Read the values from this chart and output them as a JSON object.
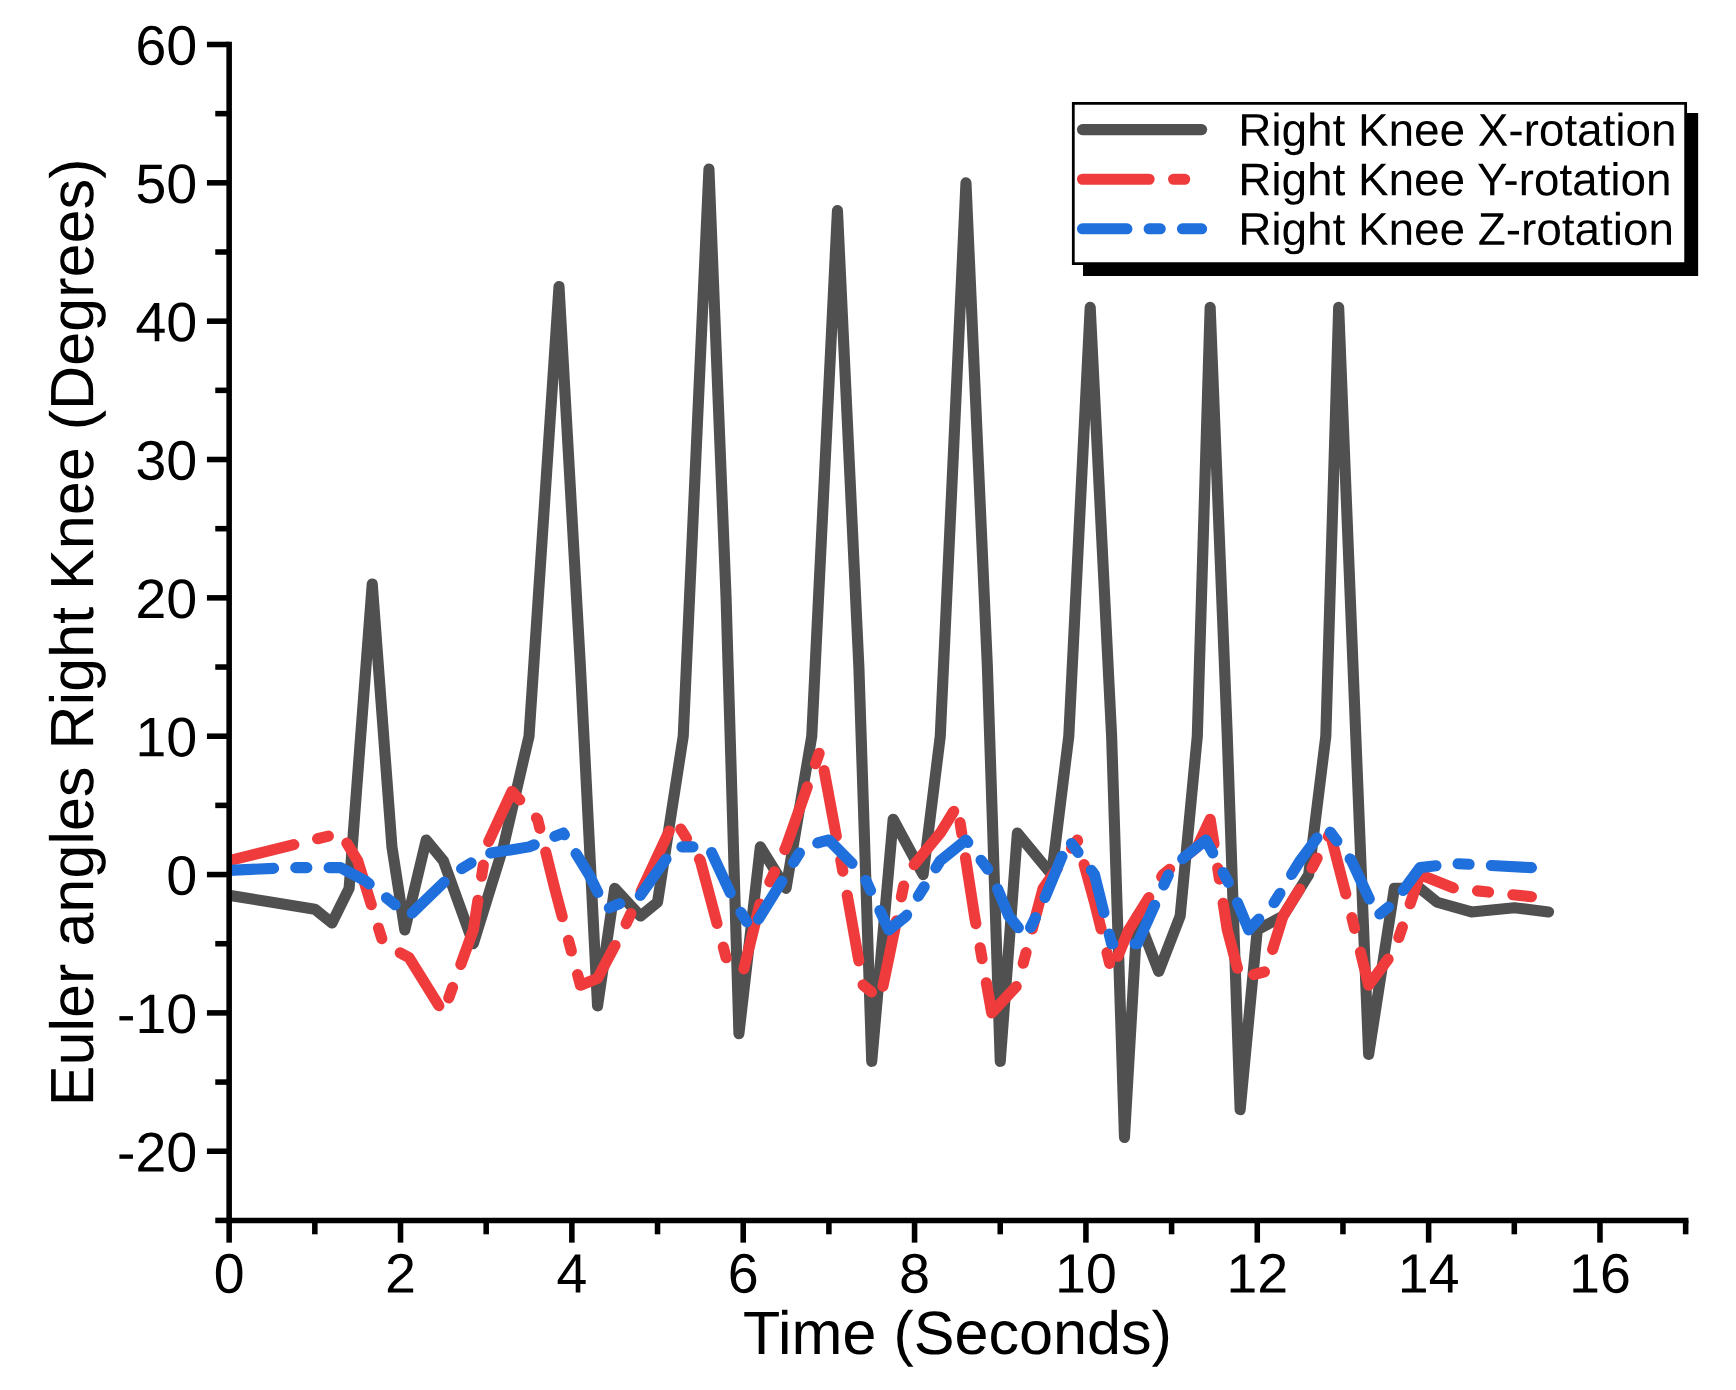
{
  "chart_data": {
    "type": "line",
    "xlabel": "Time (Seconds)",
    "ylabel": "Euler angles Right Knee (Degrees)",
    "xlim": [
      0,
      17
    ],
    "xticks": [
      0,
      2,
      4,
      6,
      8,
      10,
      12,
      14,
      16
    ],
    "ylim": [
      -25,
      60
    ],
    "yticks": [
      -20,
      -10,
      0,
      10,
      20,
      30,
      40,
      50,
      60
    ],
    "grid": false,
    "legend": "top right",
    "marker": "none",
    "series": [
      {
        "name": "Right Knee X-rotation",
        "color": "#505050",
        "line_style": "solid",
        "x": [
          0,
          0.5,
          1.0,
          1.2,
          1.4,
          1.67,
          1.9,
          2.05,
          2.3,
          2.5,
          2.85,
          3.2,
          3.5,
          3.85,
          4.1,
          4.3,
          4.5,
          4.8,
          5.0,
          5.3,
          5.6,
          5.8,
          5.95,
          6.2,
          6.5,
          6.8,
          7.1,
          7.35,
          7.5,
          7.75,
          8.1,
          8.3,
          8.6,
          8.85,
          9.0,
          9.2,
          9.6,
          9.8,
          10.05,
          10.3,
          10.45,
          10.6,
          10.85,
          11.1,
          11.3,
          11.45,
          11.65,
          11.8,
          12.0,
          12.3,
          12.6,
          12.8,
          12.95,
          13.15,
          13.3,
          13.6,
          13.9,
          14.1,
          14.5,
          15.0,
          15.4
        ],
        "values": [
          -1.5,
          -2,
          -2.5,
          -3.5,
          -1,
          21,
          2,
          -4,
          2.5,
          1,
          -5,
          2,
          10,
          42.5,
          15,
          -9.5,
          -1,
          -3,
          -2,
          10,
          51,
          20,
          -11.5,
          2,
          -1,
          10,
          48,
          15,
          -13.5,
          4,
          0,
          10,
          50,
          15,
          -13.5,
          3,
          0,
          10,
          41,
          10,
          -19,
          -3,
          -7,
          -3,
          10,
          41,
          10,
          -17,
          -4,
          -3,
          0,
          10,
          41,
          10,
          -13,
          -1,
          -1,
          -2,
          -2.7,
          -2.4,
          -2.7
        ]
      },
      {
        "name": "Right Knee Y-rotation",
        "color": "#ef3b3b",
        "line_style": "dashed",
        "x": [
          0,
          1.3,
          1.5,
          1.8,
          2.1,
          2.5,
          2.85,
          3.0,
          3.3,
          3.6,
          3.8,
          4.1,
          4.3,
          4.6,
          5.2,
          5.5,
          5.8,
          6.0,
          6.2,
          6.5,
          6.9,
          7.2,
          7.4,
          7.6,
          7.9,
          8.3,
          8.5,
          8.7,
          8.9,
          9.2,
          9.5,
          9.9,
          10.1,
          10.3,
          10.5,
          10.9,
          11.3,
          11.45,
          11.65,
          11.8,
          12.1,
          12.3,
          12.6,
          12.85,
          13.1,
          13.3,
          13.6,
          13.9,
          14.3,
          15.2
        ],
        "values": [
          1,
          3,
          1,
          -5,
          -6,
          -10,
          -4,
          2,
          6,
          4,
          -1,
          -8,
          -7.5,
          -4,
          4,
          1,
          -6,
          -7,
          -2,
          2,
          9,
          -1,
          -8,
          -9,
          0,
          3,
          5,
          -3,
          -10,
          -8,
          -1,
          2.5,
          -2,
          -7,
          -4,
          0,
          2,
          4,
          -4,
          -7.5,
          -7,
          -3,
          0,
          3,
          -3,
          -8,
          -5.5,
          0,
          -1,
          -1.6
        ]
      },
      {
        "name": "Right Knee Z-rotation",
        "color": "#1f6fdc",
        "line_style": "dashdot",
        "x": [
          0,
          0.7,
          1.3,
          1.6,
          2.1,
          2.6,
          3.0,
          3.5,
          3.9,
          4.2,
          4.4,
          4.8,
          5.2,
          5.6,
          5.9,
          6.1,
          6.4,
          6.7,
          7.0,
          7.4,
          7.7,
          7.9,
          8.3,
          8.6,
          8.9,
          9.1,
          9.3,
          9.5,
          9.8,
          10.1,
          10.3,
          10.6,
          11.0,
          11.4,
          11.7,
          11.9,
          12.2,
          12.5,
          12.8,
          13.1,
          13.4,
          13.6,
          13.9,
          14.3,
          15.2
        ],
        "values": [
          0.3,
          0.5,
          0.5,
          -0.5,
          -3,
          0,
          1.5,
          2,
          3,
          0,
          -2.5,
          -1.5,
          2,
          2,
          -2,
          -4,
          -1,
          2,
          2.5,
          0,
          -4,
          -3,
          1,
          2.5,
          0,
          -3,
          -4.5,
          -2,
          2.5,
          0,
          -5,
          -5,
          0.5,
          2.5,
          -1,
          -4,
          -2,
          1,
          3.5,
          1,
          -3,
          -2,
          0.5,
          0.8,
          0.5
        ]
      }
    ]
  }
}
